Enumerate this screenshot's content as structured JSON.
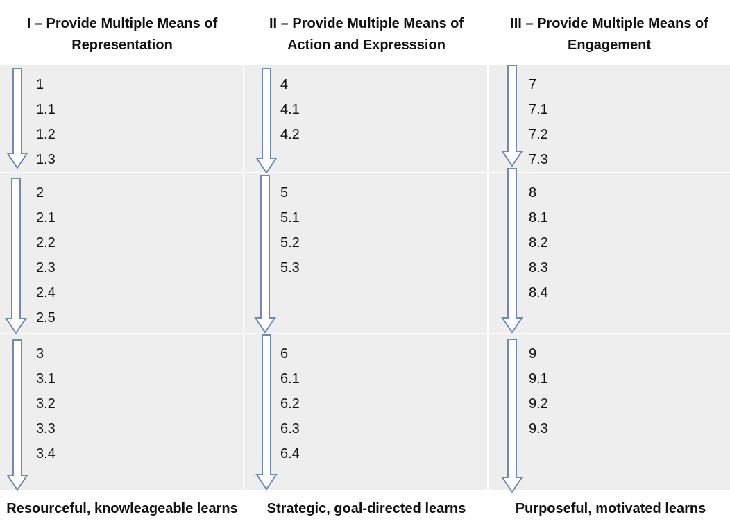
{
  "columns": [
    {
      "header": "I – Provide Multiple Means of\nRepresentation",
      "footer": "Resourceful, knowleageable learns",
      "groups": [
        [
          "1",
          "1.1",
          "1.2",
          "1.3"
        ],
        [
          "2",
          "2.1",
          "2.2",
          "2.3",
          "2.4",
          "2.5"
        ],
        [
          "3",
          "3.1",
          "3.2",
          "3.3",
          "3.4"
        ]
      ]
    },
    {
      "header": "II – Provide Multiple Means of\nAction and Expresssion",
      "footer": "Strategic, goal-directed learns",
      "groups": [
        [
          "4",
          "4.1",
          "4.2"
        ],
        [
          "5",
          "5.1",
          "5.2",
          "5.3"
        ],
        [
          "6",
          "6.1",
          "6.2",
          "6.3",
          "6.4"
        ]
      ]
    },
    {
      "header": "III – Provide Multiple Means of\nEngagement",
      "footer": "Purposeful, motivated learns",
      "groups": [
        [
          "7",
          "7.1",
          "7.2",
          "7.3"
        ],
        [
          "8",
          "8.1",
          "8.2",
          "8.3",
          "8.4"
        ],
        [
          "9",
          "9.1",
          "9.2",
          "9.3"
        ]
      ]
    }
  ],
  "colors": {
    "cell_background": "#eeeeee",
    "arrow_stroke": "#6f88b5",
    "text": "#111111"
  },
  "icons": {
    "arrow": "down-arrow-icon"
  }
}
